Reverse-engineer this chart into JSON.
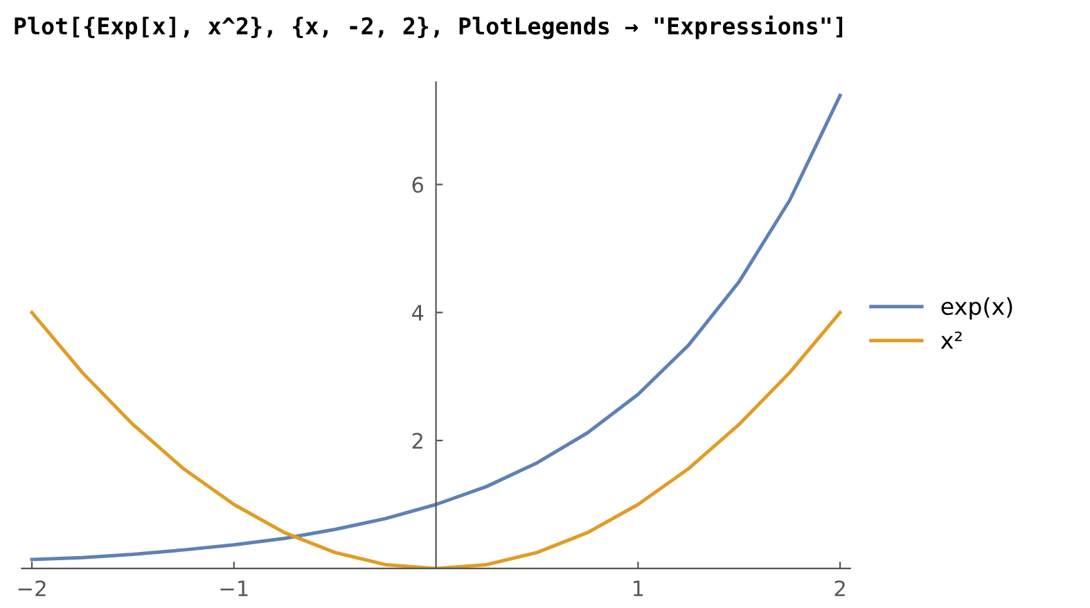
{
  "chart_data": {
    "type": "line",
    "title": "Plot[{Exp[x], x^2}, {x, -2, 2}, PlotLegends → \"Expressions\"]",
    "x": [
      -2,
      -1.75,
      -1.5,
      -1.25,
      -1,
      -0.75,
      -0.5,
      -0.25,
      0,
      0.25,
      0.5,
      0.75,
      1,
      1.25,
      1.5,
      1.75,
      2
    ],
    "series": [
      {
        "name": "exp(x)",
        "color": "#5e81b5",
        "values": [
          0.14,
          0.17,
          0.22,
          0.29,
          0.37,
          0.47,
          0.61,
          0.78,
          1.0,
          1.28,
          1.65,
          2.12,
          2.72,
          3.49,
          4.48,
          5.75,
          7.39
        ]
      },
      {
        "name": "x²",
        "color": "#e19c24",
        "values": [
          4,
          3.06,
          2.25,
          1.56,
          1,
          0.56,
          0.25,
          0.06,
          0,
          0.06,
          0.25,
          0.56,
          1,
          1.56,
          2.25,
          3.06,
          4
        ]
      }
    ],
    "xlim": [
      -2.05,
      2.05
    ],
    "ylim": [
      0,
      7.6
    ],
    "xticks": [
      {
        "value": -2,
        "label": "−2"
      },
      {
        "value": -1,
        "label": "−1"
      },
      1,
      2
    ],
    "yticks": [
      2,
      4,
      6
    ],
    "grid": false,
    "legend": "right",
    "marker": "none",
    "line_style": "solid"
  }
}
